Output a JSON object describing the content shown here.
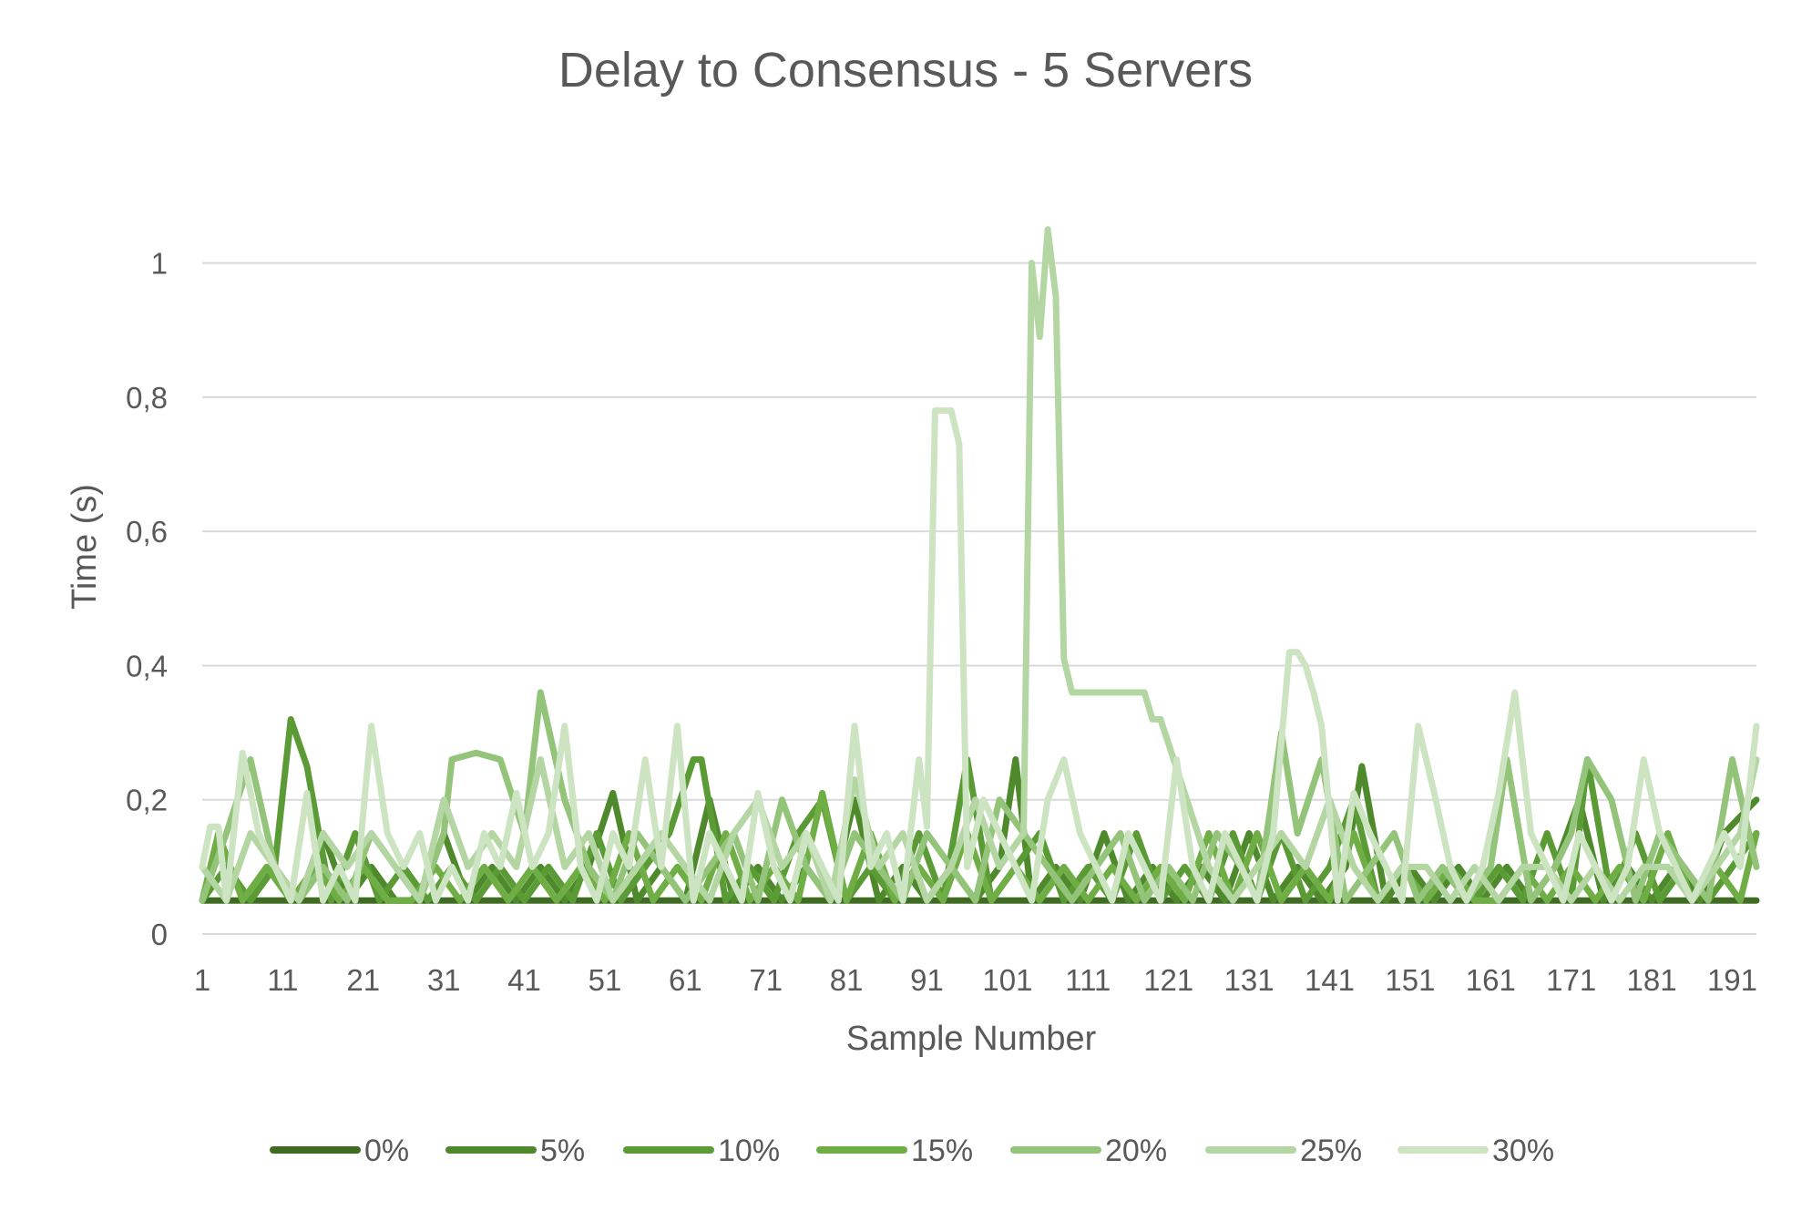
{
  "chart_data": {
    "type": "line",
    "title": "Delay to Consensus - 5 Servers",
    "xlabel": "Sample Number",
    "ylabel": "Time (s)",
    "ylim": [
      0,
      1.1
    ],
    "yticks": [
      0,
      0.2,
      0.4,
      0.6,
      0.8,
      1
    ],
    "ytick_labels": [
      "0",
      "0,2",
      "0,4",
      "0,6",
      "0,8",
      "1"
    ],
    "xlim": [
      1,
      194
    ],
    "xticks": [
      1,
      11,
      21,
      31,
      41,
      51,
      61,
      71,
      81,
      91,
      101,
      111,
      121,
      131,
      141,
      151,
      161,
      171,
      181,
      191
    ],
    "xtick_labels": [
      "1",
      "11",
      "21",
      "31",
      "41",
      "51",
      "61",
      "71",
      "81",
      "91",
      "101",
      "111",
      "121",
      "131",
      "141",
      "151",
      "161",
      "171",
      "181",
      "191"
    ],
    "grid": true,
    "legend_position": "bottom",
    "series": [
      {
        "name": "0%",
        "color": "#3f6b22",
        "x": [
          1,
          10,
          20,
          30,
          40,
          50,
          60,
          70,
          80,
          90,
          100,
          110,
          120,
          130,
          140,
          150,
          160,
          170,
          180,
          190,
          194
        ],
        "y": [
          0.05,
          0.05,
          0.05,
          0.05,
          0.05,
          0.05,
          0.05,
          0.05,
          0.05,
          0.05,
          0.05,
          0.05,
          0.05,
          0.05,
          0.05,
          0.05,
          0.05,
          0.05,
          0.05,
          0.05,
          0.05
        ]
      },
      {
        "name": "5%",
        "color": "#4e8a2c",
        "x": [
          1,
          4,
          7,
          10,
          13,
          16,
          19,
          22,
          25,
          28,
          31,
          34,
          37,
          40,
          43,
          46,
          49,
          52,
          55,
          58,
          61,
          64,
          67,
          70,
          73,
          76,
          79,
          82,
          85,
          88,
          91,
          94,
          97,
          100,
          102,
          104,
          107,
          110,
          113,
          116,
          119,
          122,
          125,
          128,
          131,
          134,
          137,
          140,
          143,
          145,
          148,
          151,
          154,
          157,
          160,
          163,
          166,
          169,
          172,
          175,
          178,
          181,
          184,
          187,
          190,
          194
        ],
        "y": [
          0.05,
          0.1,
          0.05,
          0.1,
          0.05,
          0.15,
          0.05,
          0.1,
          0.05,
          0.05,
          0.15,
          0.05,
          0.1,
          0.05,
          0.1,
          0.05,
          0.1,
          0.21,
          0.05,
          0.1,
          0.05,
          0.2,
          0.05,
          0.1,
          0.05,
          0.1,
          0.05,
          0.2,
          0.05,
          0.1,
          0.05,
          0.1,
          0.05,
          0.1,
          0.26,
          0.05,
          0.1,
          0.05,
          0.15,
          0.05,
          0.1,
          0.05,
          0.1,
          0.05,
          0.15,
          0.05,
          0.1,
          0.05,
          0.1,
          0.25,
          0.05,
          0.1,
          0.05,
          0.1,
          0.05,
          0.1,
          0.05,
          0.1,
          0.2,
          0.05,
          0.1,
          0.05,
          0.1,
          0.05,
          0.15,
          0.2
        ]
      },
      {
        "name": "10%",
        "color": "#5b9b35",
        "x": [
          1,
          4,
          7,
          10,
          12,
          14,
          17,
          20,
          23,
          26,
          29,
          32,
          35,
          38,
          41,
          44,
          47,
          50,
          53,
          56,
          59,
          62,
          63,
          66,
          69,
          72,
          75,
          78,
          81,
          84,
          87,
          90,
          93,
          96,
          99,
          102,
          105,
          108,
          111,
          114,
          117,
          120,
          123,
          126,
          129,
          132,
          135,
          138,
          141,
          144,
          147,
          150,
          153,
          156,
          159,
          162,
          165,
          168,
          171,
          173,
          176,
          179,
          182,
          185,
          188,
          191,
          194
        ],
        "y": [
          0.05,
          0.1,
          0.05,
          0.1,
          0.32,
          0.25,
          0.05,
          0.15,
          0.05,
          0.1,
          0.05,
          0.1,
          0.05,
          0.1,
          0.05,
          0.1,
          0.05,
          0.15,
          0.05,
          0.1,
          0.15,
          0.26,
          0.26,
          0.05,
          0.1,
          0.05,
          0.15,
          0.2,
          0.05,
          0.1,
          0.05,
          0.15,
          0.05,
          0.26,
          0.05,
          0.1,
          0.15,
          0.05,
          0.1,
          0.05,
          0.15,
          0.05,
          0.1,
          0.05,
          0.15,
          0.05,
          0.15,
          0.05,
          0.1,
          0.2,
          0.05,
          0.1,
          0.05,
          0.1,
          0.05,
          0.1,
          0.05,
          0.15,
          0.05,
          0.26,
          0.05,
          0.15,
          0.05,
          0.1,
          0.05,
          0.1,
          0.15
        ]
      },
      {
        "name": "15%",
        "color": "#6fae45",
        "x": [
          1,
          3,
          6,
          9,
          12,
          15,
          18,
          21,
          24,
          27,
          30,
          33,
          36,
          39,
          42,
          45,
          48,
          51,
          54,
          57,
          60,
          63,
          66,
          69,
          72,
          75,
          78,
          81,
          84,
          87,
          90,
          93,
          96,
          99,
          102,
          105,
          108,
          111,
          114,
          117,
          120,
          123,
          126,
          129,
          132,
          135,
          138,
          141,
          144,
          147,
          150,
          153,
          156,
          159,
          162,
          165,
          168,
          171,
          174,
          177,
          180,
          183,
          186,
          189,
          192,
          194
        ],
        "y": [
          0.05,
          0.15,
          0.05,
          0.1,
          0.05,
          0.1,
          0.05,
          0.1,
          0.05,
          0.05,
          0.1,
          0.05,
          0.1,
          0.05,
          0.1,
          0.05,
          0.1,
          0.05,
          0.15,
          0.05,
          0.1,
          0.05,
          0.15,
          0.05,
          0.1,
          0.05,
          0.21,
          0.05,
          0.15,
          0.05,
          0.1,
          0.05,
          0.15,
          0.05,
          0.1,
          0.05,
          0.1,
          0.05,
          0.1,
          0.05,
          0.1,
          0.05,
          0.15,
          0.05,
          0.15,
          0.05,
          0.1,
          0.05,
          0.15,
          0.05,
          0.1,
          0.05,
          0.1,
          0.05,
          0.05,
          0.1,
          0.05,
          0.1,
          0.05,
          0.1,
          0.05,
          0.15,
          0.05,
          0.1,
          0.05,
          0.15
        ]
      },
      {
        "name": "20%",
        "color": "#93c47a",
        "x": [
          1,
          4,
          7,
          10,
          13,
          16,
          19,
          22,
          25,
          28,
          31,
          32,
          35,
          38,
          41,
          43,
          46,
          49,
          52,
          55,
          58,
          61,
          64,
          67,
          70,
          73,
          76,
          79,
          82,
          85,
          88,
          91,
          94,
          97,
          100,
          103,
          106,
          109,
          112,
          115,
          118,
          121,
          124,
          127,
          130,
          132,
          135,
          137,
          140,
          143,
          146,
          149,
          152,
          155,
          158,
          161,
          163,
          166,
          169,
          171,
          173,
          176,
          179,
          182,
          185,
          188,
          191,
          194
        ],
        "y": [
          0.05,
          0.15,
          0.26,
          0.1,
          0.05,
          0.1,
          0.05,
          0.15,
          0.1,
          0.05,
          0.15,
          0.26,
          0.27,
          0.26,
          0.15,
          0.36,
          0.2,
          0.1,
          0.05,
          0.15,
          0.1,
          0.05,
          0.1,
          0.15,
          0.05,
          0.2,
          0.1,
          0.05,
          0.15,
          0.1,
          0.05,
          0.15,
          0.1,
          0.05,
          0.2,
          0.15,
          0.1,
          0.05,
          0.1,
          0.15,
          0.05,
          0.1,
          0.05,
          0.15,
          0.1,
          0.05,
          0.3,
          0.15,
          0.26,
          0.05,
          0.1,
          0.15,
          0.05,
          0.1,
          0.05,
          0.1,
          0.26,
          0.05,
          0.1,
          0.15,
          0.26,
          0.2,
          0.05,
          0.15,
          0.1,
          0.05,
          0.26,
          0.1
        ]
      },
      {
        "name": "25%",
        "color": "#b4d6a3",
        "x": [
          1,
          4,
          7,
          10,
          13,
          16,
          19,
          22,
          25,
          28,
          31,
          34,
          37,
          40,
          43,
          46,
          49,
          52,
          55,
          58,
          61,
          64,
          67,
          70,
          73,
          76,
          79,
          82,
          85,
          88,
          91,
          94,
          97,
          100,
          103,
          104,
          105,
          106,
          107,
          108,
          109,
          110,
          112,
          115,
          118,
          119,
          120,
          123,
          126,
          129,
          132,
          135,
          138,
          141,
          144,
          147,
          150,
          153,
          156,
          159,
          162,
          165,
          168,
          171,
          174,
          177,
          180,
          183,
          186,
          189,
          192,
          194
        ],
        "y": [
          0.1,
          0.05,
          0.15,
          0.1,
          0.05,
          0.15,
          0.1,
          0.15,
          0.1,
          0.05,
          0.2,
          0.1,
          0.15,
          0.1,
          0.26,
          0.1,
          0.15,
          0.05,
          0.1,
          0.15,
          0.1,
          0.05,
          0.15,
          0.2,
          0.1,
          0.15,
          0.05,
          0.23,
          0.1,
          0.15,
          0.05,
          0.1,
          0.2,
          0.1,
          0.15,
          1.0,
          0.89,
          1.05,
          0.95,
          0.41,
          0.36,
          0.36,
          0.36,
          0.36,
          0.36,
          0.32,
          0.32,
          0.21,
          0.1,
          0.05,
          0.1,
          0.15,
          0.1,
          0.2,
          0.1,
          0.05,
          0.1,
          0.1,
          0.05,
          0.1,
          0.05,
          0.1,
          0.1,
          0.05,
          0.1,
          0.05,
          0.1,
          0.1,
          0.05,
          0.1,
          0.15,
          0.26
        ]
      },
      {
        "name": "30%",
        "color": "#cde4c2",
        "x": [
          1,
          2,
          3,
          4,
          6,
          8,
          10,
          12,
          14,
          16,
          18,
          20,
          22,
          24,
          26,
          28,
          30,
          32,
          34,
          36,
          38,
          40,
          42,
          44,
          46,
          48,
          50,
          52,
          54,
          56,
          58,
          60,
          62,
          64,
          66,
          68,
          70,
          72,
          74,
          76,
          78,
          80,
          82,
          84,
          86,
          88,
          90,
          91,
          92,
          93,
          94,
          95,
          96,
          98,
          100,
          102,
          104,
          106,
          108,
          110,
          112,
          114,
          116,
          118,
          120,
          122,
          124,
          126,
          128,
          130,
          132,
          134,
          136,
          137,
          138,
          139,
          140,
          142,
          144,
          146,
          148,
          150,
          152,
          154,
          156,
          158,
          160,
          162,
          164,
          166,
          168,
          170,
          172,
          174,
          176,
          178,
          180,
          182,
          184,
          186,
          188,
          190,
          192,
          194
        ],
        "y": [
          0.1,
          0.16,
          0.16,
          0.05,
          0.27,
          0.15,
          0.1,
          0.05,
          0.21,
          0.05,
          0.1,
          0.05,
          0.31,
          0.15,
          0.1,
          0.15,
          0.05,
          0.1,
          0.05,
          0.15,
          0.1,
          0.21,
          0.1,
          0.15,
          0.31,
          0.1,
          0.05,
          0.15,
          0.1,
          0.26,
          0.1,
          0.31,
          0.05,
          0.15,
          0.1,
          0.05,
          0.21,
          0.1,
          0.05,
          0.15,
          0.1,
          0.05,
          0.31,
          0.1,
          0.15,
          0.05,
          0.26,
          0.16,
          0.78,
          0.78,
          0.78,
          0.73,
          0.1,
          0.2,
          0.15,
          0.1,
          0.05,
          0.2,
          0.26,
          0.15,
          0.1,
          0.05,
          0.15,
          0.1,
          0.05,
          0.26,
          0.1,
          0.05,
          0.15,
          0.1,
          0.05,
          0.15,
          0.42,
          0.42,
          0.4,
          0.36,
          0.31,
          0.05,
          0.21,
          0.15,
          0.1,
          0.05,
          0.31,
          0.21,
          0.1,
          0.05,
          0.1,
          0.21,
          0.36,
          0.15,
          0.1,
          0.05,
          0.15,
          0.1,
          0.05,
          0.1,
          0.26,
          0.15,
          0.1,
          0.05,
          0.1,
          0.15,
          0.1,
          0.31
        ]
      }
    ]
  }
}
